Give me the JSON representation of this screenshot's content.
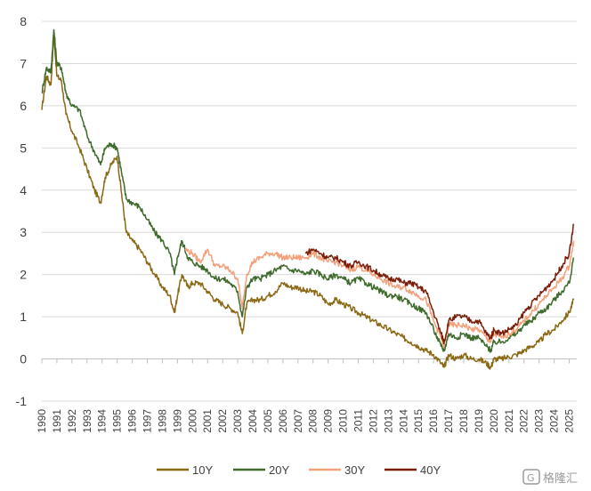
{
  "chart_data": {
    "type": "line",
    "title": "",
    "xlabel": "",
    "ylabel": "",
    "ylim": [
      -1,
      8
    ],
    "yticks": [
      "-1",
      "0",
      "1",
      "2",
      "3",
      "4",
      "5",
      "6",
      "7",
      "8"
    ],
    "xticks": [
      "1990",
      "1991",
      "1992",
      "1993",
      "1994",
      "1995",
      "1996",
      "1997",
      "1998",
      "1999",
      "2000",
      "2001",
      "2002",
      "2003",
      "2004",
      "2005",
      "2006",
      "2007",
      "2008",
      "2009",
      "2010",
      "2011",
      "2012",
      "2013",
      "2014",
      "2015",
      "2016",
      "2017",
      "2018",
      "2019",
      "2020",
      "2021",
      "2022",
      "2023",
      "2024",
      "2025"
    ],
    "grid": true,
    "legend_position": "bottom",
    "series": [
      {
        "name": "10Y",
        "color": "#8B6914",
        "x": [
          1990.0,
          1990.3,
          1990.6,
          1990.8,
          1991.0,
          1991.3,
          1991.6,
          1992.0,
          1992.5,
          1993.0,
          1993.5,
          1993.9,
          1994.2,
          1994.6,
          1995.0,
          1995.3,
          1995.6,
          1996.0,
          1996.5,
          1997.0,
          1997.5,
          1998.0,
          1998.5,
          1998.8,
          1999.0,
          1999.3,
          1999.7,
          2000.0,
          2000.5,
          2001.0,
          2001.5,
          2002.0,
          2002.5,
          2003.0,
          2003.3,
          2003.6,
          2004.0,
          2004.5,
          2005.0,
          2005.5,
          2006.0,
          2006.5,
          2007.0,
          2007.5,
          2008.0,
          2008.5,
          2009.0,
          2009.5,
          2010.0,
          2010.5,
          2011.0,
          2011.5,
          2012.0,
          2012.5,
          2013.0,
          2013.5,
          2014.0,
          2014.5,
          2015.0,
          2015.5,
          2016.0,
          2016.5,
          2016.7,
          2017.0,
          2017.5,
          2018.0,
          2018.5,
          2019.0,
          2019.5,
          2019.8,
          2020.0,
          2020.5,
          2021.0,
          2021.5,
          2022.0,
          2022.5,
          2023.0,
          2023.5,
          2024.0,
          2024.5,
          2025.0,
          2025.3
        ],
        "values": [
          5.9,
          6.7,
          6.5,
          7.7,
          6.7,
          6.6,
          5.8,
          5.4,
          5.0,
          4.5,
          4.0,
          3.7,
          4.3,
          4.6,
          4.8,
          3.9,
          3.0,
          2.8,
          2.6,
          2.3,
          2.0,
          1.7,
          1.5,
          1.1,
          1.5,
          2.0,
          1.7,
          1.8,
          1.8,
          1.6,
          1.4,
          1.3,
          1.2,
          1.1,
          0.6,
          1.3,
          1.4,
          1.4,
          1.5,
          1.6,
          1.8,
          1.7,
          1.7,
          1.6,
          1.6,
          1.5,
          1.3,
          1.4,
          1.3,
          1.2,
          1.1,
          1.0,
          0.9,
          0.8,
          0.7,
          0.6,
          0.5,
          0.4,
          0.3,
          0.2,
          0.1,
          -0.1,
          -0.2,
          0.1,
          0.0,
          0.1,
          0.0,
          0.0,
          -0.1,
          -0.2,
          0.0,
          0.0,
          0.05,
          0.1,
          0.2,
          0.3,
          0.4,
          0.6,
          0.7,
          0.9,
          1.1,
          1.4
        ]
      },
      {
        "name": "20Y",
        "color": "#3E6B2C",
        "x": [
          1990.0,
          1990.3,
          1990.6,
          1990.8,
          1991.0,
          1991.3,
          1991.6,
          1992.0,
          1992.5,
          1993.0,
          1993.5,
          1993.9,
          1994.2,
          1994.6,
          1995.0,
          1995.3,
          1995.6,
          1996.0,
          1996.5,
          1997.0,
          1997.5,
          1998.0,
          1998.5,
          1998.8,
          1999.0,
          1999.3,
          1999.7,
          2000.0,
          2000.5,
          2001.0,
          2001.5,
          2002.0,
          2002.5,
          2003.0,
          2003.3,
          2003.6,
          2004.0,
          2004.5,
          2005.0,
          2005.5,
          2006.0,
          2006.5,
          2007.0,
          2007.5,
          2008.0,
          2008.5,
          2009.0,
          2009.5,
          2010.0,
          2010.5,
          2011.0,
          2011.5,
          2012.0,
          2012.5,
          2013.0,
          2013.5,
          2014.0,
          2014.5,
          2015.0,
          2015.5,
          2016.0,
          2016.5,
          2016.7,
          2017.0,
          2017.5,
          2018.0,
          2018.5,
          2019.0,
          2019.5,
          2019.8,
          2020.0,
          2020.5,
          2021.0,
          2021.5,
          2022.0,
          2022.5,
          2023.0,
          2023.5,
          2024.0,
          2024.5,
          2025.0,
          2025.3
        ],
        "values": [
          6.3,
          6.9,
          6.8,
          7.8,
          7.0,
          6.9,
          6.3,
          6.0,
          5.9,
          5.3,
          4.9,
          4.6,
          5.0,
          5.1,
          5.0,
          4.4,
          3.8,
          3.7,
          3.6,
          3.3,
          3.0,
          2.8,
          2.5,
          2.0,
          2.4,
          2.8,
          2.4,
          2.3,
          2.2,
          2.1,
          1.9,
          1.9,
          1.8,
          1.6,
          1.0,
          1.7,
          1.9,
          1.9,
          2.0,
          2.1,
          2.2,
          2.1,
          2.1,
          2.0,
          2.1,
          2.0,
          1.9,
          2.0,
          1.9,
          1.8,
          1.9,
          1.8,
          1.7,
          1.6,
          1.5,
          1.5,
          1.4,
          1.3,
          1.2,
          1.1,
          0.7,
          0.3,
          0.2,
          0.6,
          0.5,
          0.6,
          0.5,
          0.5,
          0.3,
          0.2,
          0.4,
          0.4,
          0.5,
          0.6,
          0.8,
          0.9,
          1.1,
          1.2,
          1.4,
          1.6,
          1.8,
          2.4
        ]
      },
      {
        "name": "30Y",
        "color": "#F4A07A",
        "x": [
          1999.5,
          2000.0,
          2000.5,
          2001.0,
          2001.5,
          2002.0,
          2002.5,
          2003.0,
          2003.3,
          2003.6,
          2004.0,
          2004.5,
          2005.0,
          2005.5,
          2006.0,
          2006.5,
          2007.0,
          2007.5,
          2008.0,
          2008.5,
          2009.0,
          2009.5,
          2010.0,
          2010.5,
          2011.0,
          2011.5,
          2012.0,
          2012.5,
          2013.0,
          2013.5,
          2014.0,
          2014.5,
          2015.0,
          2015.5,
          2016.0,
          2016.5,
          2016.7,
          2017.0,
          2017.5,
          2018.0,
          2018.5,
          2019.0,
          2019.5,
          2019.8,
          2020.0,
          2020.5,
          2021.0,
          2021.5,
          2022.0,
          2022.5,
          2023.0,
          2023.5,
          2024.0,
          2024.5,
          2025.0,
          2025.3
        ],
        "values": [
          2.6,
          2.5,
          2.3,
          2.6,
          2.2,
          2.2,
          2.1,
          1.9,
          1.2,
          2.0,
          2.3,
          2.4,
          2.5,
          2.5,
          2.4,
          2.4,
          2.4,
          2.4,
          2.5,
          2.4,
          2.3,
          2.3,
          2.2,
          2.1,
          2.2,
          2.1,
          2.0,
          1.9,
          1.8,
          1.7,
          1.7,
          1.6,
          1.5,
          1.4,
          0.9,
          0.5,
          0.3,
          0.8,
          0.8,
          0.8,
          0.7,
          0.7,
          0.5,
          0.4,
          0.6,
          0.5,
          0.6,
          0.7,
          0.9,
          1.1,
          1.3,
          1.5,
          1.7,
          1.9,
          2.2,
          2.8
        ]
      },
      {
        "name": "40Y",
        "color": "#7A1E0A",
        "x": [
          2007.5,
          2008.0,
          2008.5,
          2009.0,
          2009.5,
          2010.0,
          2010.5,
          2011.0,
          2011.5,
          2012.0,
          2012.5,
          2013.0,
          2013.5,
          2014.0,
          2014.5,
          2015.0,
          2015.5,
          2016.0,
          2016.5,
          2016.7,
          2017.0,
          2017.5,
          2018.0,
          2018.5,
          2019.0,
          2019.5,
          2019.8,
          2020.0,
          2020.5,
          2021.0,
          2021.5,
          2022.0,
          2022.5,
          2023.0,
          2023.5,
          2024.0,
          2024.5,
          2025.0,
          2025.3
        ],
        "values": [
          2.5,
          2.6,
          2.5,
          2.4,
          2.4,
          2.3,
          2.2,
          2.3,
          2.2,
          2.1,
          2.0,
          1.9,
          1.9,
          1.8,
          1.8,
          1.7,
          1.6,
          1.1,
          0.6,
          0.4,
          0.9,
          1.0,
          1.0,
          0.9,
          0.9,
          0.6,
          0.5,
          0.7,
          0.6,
          0.7,
          0.8,
          1.1,
          1.3,
          1.5,
          1.7,
          1.9,
          2.2,
          2.5,
          3.2
        ]
      }
    ]
  },
  "watermark": {
    "text": "格隆汇"
  }
}
